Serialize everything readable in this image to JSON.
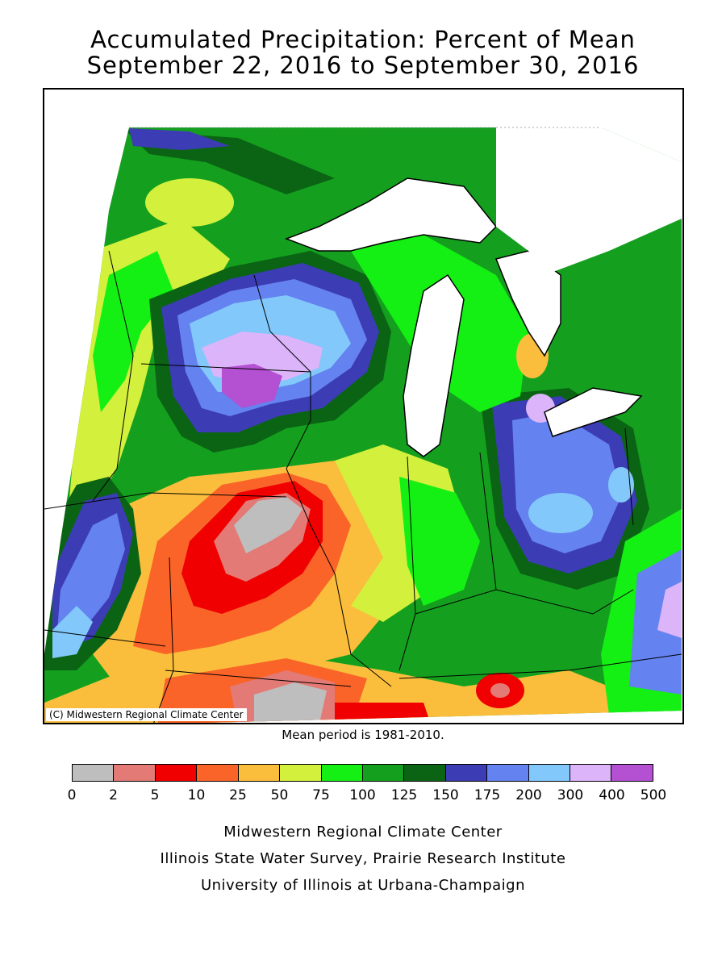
{
  "title": {
    "line1": "Accumulated Precipitation: Percent of Mean",
    "line2": "September 22, 2016 to September 30, 2016"
  },
  "map": {
    "copyright": "(C) Midwestern Regional Climate Center",
    "region": "Midwest (MN, WI, MI, IA, IL, IN, MO, OH, KY)"
  },
  "mean_period": "Mean period is 1981-2010.",
  "legend": {
    "ticks": [
      "0",
      "2",
      "5",
      "10",
      "25",
      "50",
      "75",
      "100",
      "125",
      "150",
      "175",
      "200",
      "300",
      "400",
      "500"
    ],
    "colors": [
      "#bebebe",
      "#e37a75",
      "#f00000",
      "#fa6428",
      "#fabe3c",
      "#d2f03c",
      "#14f014",
      "#14a01e",
      "#0a6414",
      "#3c3cb4",
      "#6482f0",
      "#82c8fa",
      "#dcb4fa",
      "#b450d2"
    ]
  },
  "credits": [
    "Midwestern Regional Climate Center",
    "Illinois State Water Survey, Prairie Research Institute",
    "University of Illinois at Urbana-Champaign"
  ]
}
